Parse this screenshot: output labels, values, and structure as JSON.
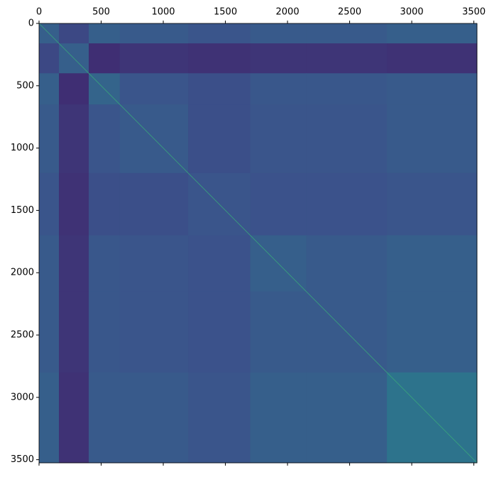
{
  "chart_data": {
    "type": "heatmap",
    "x_edges": [
      0,
      160,
      400,
      650,
      1200,
      1700,
      2150,
      2800,
      3525
    ],
    "y_edges": [
      0,
      160,
      400,
      650,
      1200,
      1700,
      2150,
      2800,
      3525
    ],
    "values": [
      [
        0.3,
        0.22,
        0.3,
        0.28,
        0.26,
        0.28,
        0.28,
        0.3
      ],
      [
        0.22,
        0.3,
        0.14,
        0.16,
        0.15,
        0.16,
        0.16,
        0.15
      ],
      [
        0.3,
        0.14,
        0.32,
        0.26,
        0.24,
        0.27,
        0.27,
        0.28
      ],
      [
        0.28,
        0.16,
        0.26,
        0.28,
        0.24,
        0.26,
        0.26,
        0.28
      ],
      [
        0.26,
        0.15,
        0.24,
        0.24,
        0.26,
        0.25,
        0.25,
        0.26
      ],
      [
        0.28,
        0.16,
        0.27,
        0.26,
        0.25,
        0.3,
        0.28,
        0.3
      ],
      [
        0.28,
        0.16,
        0.27,
        0.26,
        0.25,
        0.28,
        0.28,
        0.3
      ],
      [
        0.3,
        0.15,
        0.28,
        0.28,
        0.26,
        0.3,
        0.3,
        0.38
      ]
    ],
    "diagonal": 1,
    "colormap": "viridis",
    "vlim": [
      0,
      1
    ],
    "xlim": [
      0,
      3525
    ],
    "ylim": [
      0,
      3525
    ],
    "xticks": [
      0,
      500,
      1000,
      1500,
      2000,
      2500,
      3000,
      3500
    ],
    "yticks": [
      0,
      500,
      1000,
      1500,
      2000,
      2500,
      3000,
      3500
    ]
  }
}
